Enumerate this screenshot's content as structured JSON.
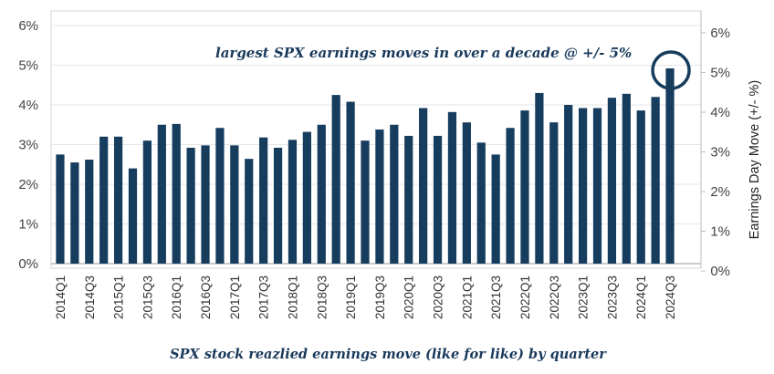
{
  "chart_data": {
    "type": "bar",
    "title": "",
    "caption": "SPX stock reazlied earnings move (like for like) by quarter",
    "annotation": "largest SPX earnings moves in over a decade @ +/- 5%",
    "xlabel": "",
    "ylabel": "",
    "y2label": "Earnings Day Move (+/- %)",
    "ylim": [
      0,
      6
    ],
    "y2lim": [
      0,
      6
    ],
    "yticks": [
      "0%",
      "1%",
      "2%",
      "3%",
      "4%",
      "5%",
      "6%"
    ],
    "y2ticks": [
      "0%",
      "1%",
      "2%",
      "3%",
      "4%",
      "5%",
      "6%"
    ],
    "grid": true,
    "bar_color": "#173d5e",
    "highlight_color": "#173d5e",
    "categories": [
      "2014Q1",
      "2014Q2",
      "2014Q3",
      "2014Q4",
      "2015Q1",
      "2015Q2",
      "2015Q3",
      "2015Q4",
      "2016Q1",
      "2016Q2",
      "2016Q3",
      "2016Q4",
      "2017Q1",
      "2017Q2",
      "2017Q3",
      "2017Q4",
      "2018Q1",
      "2018Q2",
      "2018Q3",
      "2018Q4",
      "2019Q1",
      "2019Q2",
      "2019Q3",
      "2019Q4",
      "2020Q1",
      "2020Q2",
      "2020Q3",
      "2020Q4",
      "2021Q1",
      "2021Q2",
      "2021Q3",
      "2021Q4",
      "2022Q1",
      "2022Q2",
      "2022Q3",
      "2022Q4",
      "2023Q1",
      "2023Q2",
      "2023Q3",
      "2023Q4",
      "2024Q1",
      "2024Q2",
      "2024Q3"
    ],
    "xticks_shown": [
      "2014Q1",
      "2014Q3",
      "2015Q1",
      "2015Q3",
      "2016Q1",
      "2016Q3",
      "2017Q1",
      "2017Q3",
      "2018Q1",
      "2018Q3",
      "2019Q1",
      "2019Q3",
      "2020Q1",
      "2020Q3",
      "2021Q1",
      "2021Q3",
      "2022Q1",
      "2022Q3",
      "2023Q1",
      "2023Q3",
      "2024Q1",
      "2024Q3"
    ],
    "values": [
      2.75,
      2.55,
      2.62,
      3.2,
      3.2,
      2.4,
      3.1,
      3.5,
      3.52,
      2.92,
      2.98,
      3.42,
      2.98,
      2.64,
      3.18,
      2.92,
      3.12,
      3.32,
      3.5,
      4.25,
      4.08,
      3.1,
      3.38,
      3.5,
      3.22,
      3.92,
      3.22,
      3.82,
      3.56,
      3.05,
      2.75,
      3.42,
      3.86,
      4.3,
      3.56,
      4.0,
      3.92,
      3.92,
      4.18,
      4.28,
      3.86,
      4.2,
      4.92
    ]
  }
}
